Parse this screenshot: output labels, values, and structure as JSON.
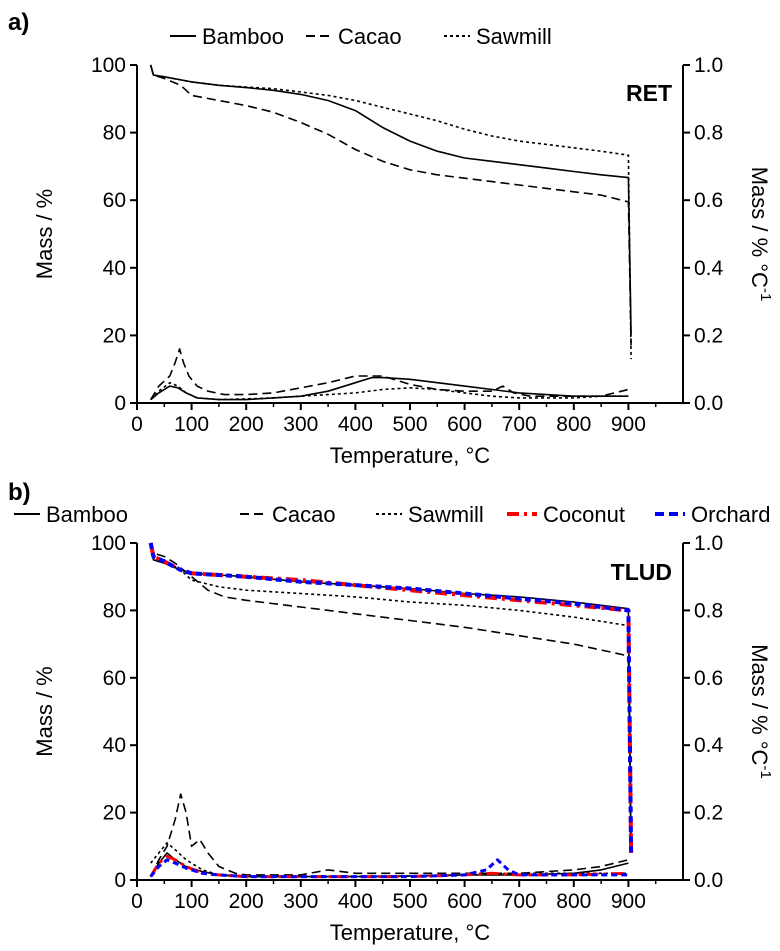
{
  "chart_data": [
    {
      "type": "line",
      "panel_label": "a)",
      "annotation": "RET",
      "xlabel": "Temperature, °C",
      "ylabel": "Mass / %",
      "y2label_main": "Mass / % °C",
      "y2label_sup": "-1",
      "xlim": [
        0,
        1000
      ],
      "ylim": [
        0,
        100
      ],
      "y2lim": [
        0,
        1.0
      ],
      "xticks": [
        "0",
        "100",
        "200",
        "300",
        "400",
        "500",
        "600",
        "700",
        "800",
        "900"
      ],
      "yticks": [
        "0",
        "20",
        "40",
        "60",
        "80",
        "100"
      ],
      "y2ticks": [
        "0.0",
        "0.2",
        "0.4",
        "0.6",
        "0.8",
        "1.0"
      ],
      "legend_position": "top",
      "series": [
        {
          "name": "Bamboo",
          "kind": "mass",
          "style": "solid",
          "color": "#000000",
          "x": [
            25,
            30,
            50,
            100,
            150,
            200,
            250,
            300,
            350,
            400,
            450,
            500,
            550,
            600,
            650,
            700,
            750,
            800,
            850,
            900,
            905
          ],
          "y": [
            100,
            97,
            96.5,
            95,
            94,
            93.3,
            92.5,
            91.3,
            89.5,
            86.5,
            81.5,
            77.5,
            74.5,
            72.5,
            71.5,
            70.5,
            69.5,
            68.5,
            67.5,
            66.7,
            20
          ]
        },
        {
          "name": "Cacao",
          "kind": "mass",
          "style": "dashed",
          "color": "#000000",
          "x": [
            25,
            30,
            50,
            80,
            100,
            150,
            200,
            250,
            300,
            350,
            400,
            450,
            500,
            550,
            600,
            650,
            700,
            750,
            800,
            850,
            900,
            905
          ],
          "y": [
            100,
            97,
            96,
            94,
            91,
            89.5,
            88,
            86,
            83,
            79.5,
            75,
            71.5,
            69,
            67.5,
            66.5,
            65.5,
            64.5,
            63.5,
            62.5,
            61.5,
            59.5,
            17
          ]
        },
        {
          "name": "Sawmill",
          "kind": "mass",
          "style": "dotted",
          "color": "#000000",
          "x": [
            25,
            30,
            50,
            100,
            150,
            200,
            250,
            300,
            350,
            400,
            450,
            500,
            550,
            600,
            650,
            700,
            750,
            800,
            850,
            900,
            905
          ],
          "y": [
            100,
            97,
            96.5,
            95,
            94,
            93.5,
            93,
            92,
            91,
            89.5,
            87.5,
            85.5,
            83.5,
            81,
            79,
            77.5,
            76.5,
            75.5,
            74.5,
            73.3,
            13
          ]
        },
        {
          "name": "Bamboo",
          "kind": "dtg",
          "style": "solid",
          "color": "#000000",
          "x": [
            25,
            40,
            60,
            75,
            90,
            110,
            150,
            200,
            250,
            300,
            350,
            400,
            430,
            450,
            500,
            550,
            600,
            650,
            700,
            750,
            800,
            850,
            900
          ],
          "y": [
            0.01,
            0.03,
            0.05,
            0.045,
            0.03,
            0.015,
            0.01,
            0.01,
            0.015,
            0.02,
            0.035,
            0.06,
            0.075,
            0.075,
            0.07,
            0.06,
            0.05,
            0.04,
            0.03,
            0.025,
            0.02,
            0.02,
            0.02
          ]
        },
        {
          "name": "Cacao",
          "kind": "dtg",
          "style": "dashed",
          "color": "#000000",
          "x": [
            25,
            40,
            60,
            70,
            78,
            85,
            95,
            110,
            130,
            160,
            200,
            250,
            300,
            350,
            400,
            450,
            500,
            550,
            600,
            650,
            670,
            690,
            720,
            800,
            850,
            900
          ],
          "y": [
            0.01,
            0.05,
            0.08,
            0.12,
            0.16,
            0.12,
            0.08,
            0.05,
            0.035,
            0.025,
            0.025,
            0.03,
            0.045,
            0.06,
            0.08,
            0.08,
            0.055,
            0.04,
            0.035,
            0.035,
            0.05,
            0.03,
            0.02,
            0.02,
            0.02,
            0.04
          ]
        },
        {
          "name": "Sawmill",
          "kind": "dtg",
          "style": "dotted",
          "color": "#000000",
          "x": [
            25,
            40,
            60,
            75,
            90,
            110,
            150,
            200,
            250,
            300,
            350,
            400,
            450,
            500,
            550,
            600,
            650,
            700,
            750,
            800,
            850,
            900
          ],
          "y": [
            0.01,
            0.035,
            0.06,
            0.05,
            0.03,
            0.015,
            0.01,
            0.012,
            0.015,
            0.02,
            0.025,
            0.03,
            0.04,
            0.045,
            0.04,
            0.03,
            0.02,
            0.015,
            0.015,
            0.015,
            0.02,
            0.02
          ]
        }
      ]
    },
    {
      "type": "line",
      "panel_label": "b)",
      "annotation": "TLUD",
      "xlabel": "Temperature, °C",
      "ylabel": "Mass / %",
      "y2label_main": "Mass / % °C",
      "y2label_sup": "-1",
      "xlim": [
        0,
        1000
      ],
      "ylim": [
        0,
        100
      ],
      "y2lim": [
        0,
        1.0
      ],
      "xticks": [
        "0",
        "100",
        "200",
        "300",
        "400",
        "500",
        "600",
        "700",
        "800",
        "900"
      ],
      "yticks": [
        "0",
        "20",
        "40",
        "60",
        "80",
        "100"
      ],
      "y2ticks": [
        "0.0",
        "0.2",
        "0.4",
        "0.6",
        "0.8",
        "1.0"
      ],
      "legend_position": "top",
      "series": [
        {
          "name": "Bamboo",
          "kind": "mass",
          "style": "solid",
          "color": "#000000",
          "x": [
            25,
            30,
            50,
            80,
            100,
            150,
            200,
            300,
            400,
            500,
            600,
            700,
            800,
            850,
            900,
            905
          ],
          "y": [
            100,
            95,
            94,
            92,
            91,
            90.5,
            90,
            88.5,
            87.5,
            86.5,
            85,
            84,
            82.5,
            81.5,
            80.5,
            8
          ]
        },
        {
          "name": "Cacao",
          "kind": "mass",
          "style": "dashed",
          "color": "#000000",
          "x": [
            25,
            30,
            50,
            70,
            100,
            130,
            160,
            200,
            300,
            400,
            500,
            600,
            700,
            800,
            900,
            905
          ],
          "y": [
            100,
            97,
            96,
            94,
            90,
            86,
            84,
            83,
            81,
            79,
            77,
            75,
            72.5,
            70,
            66.5,
            8
          ]
        },
        {
          "name": "Sawmill",
          "kind": "mass",
          "style": "dotted",
          "color": "#000000",
          "x": [
            25,
            30,
            50,
            80,
            100,
            150,
            200,
            300,
            400,
            500,
            600,
            700,
            800,
            900,
            905
          ],
          "y": [
            100,
            96,
            95,
            92,
            89,
            87,
            86,
            85,
            84,
            82.5,
            81.5,
            80,
            78,
            75.5,
            8
          ]
        },
        {
          "name": "Coconut",
          "kind": "mass",
          "style": "dashdot",
          "color": "#ff0000",
          "x": [
            25,
            30,
            50,
            80,
            100,
            150,
            200,
            300,
            400,
            500,
            600,
            700,
            800,
            900,
            905
          ],
          "y": [
            100,
            96,
            94.5,
            92,
            91,
            90.5,
            90,
            89,
            87.5,
            86,
            84.5,
            83,
            81.5,
            80,
            8
          ]
        },
        {
          "name": "Orchard",
          "kind": "mass",
          "style": "dashed",
          "color": "#0000ff",
          "x": [
            25,
            30,
            50,
            80,
            100,
            150,
            200,
            300,
            400,
            500,
            600,
            700,
            800,
            900,
            905
          ],
          "y": [
            100,
            96,
            94.5,
            92,
            91,
            90.5,
            90,
            88.5,
            87.5,
            86.5,
            85,
            83.5,
            82,
            80,
            8
          ]
        },
        {
          "name": "Bamboo",
          "kind": "dtg",
          "style": "solid",
          "color": "#000000",
          "x": [
            25,
            40,
            55,
            70,
            90,
            120,
            150,
            200,
            300,
            400,
            500,
            600,
            700,
            800,
            850,
            900
          ],
          "y": [
            0.01,
            0.05,
            0.08,
            0.06,
            0.04,
            0.025,
            0.015,
            0.01,
            0.01,
            0.01,
            0.012,
            0.015,
            0.015,
            0.02,
            0.03,
            0.05
          ]
        },
        {
          "name": "Cacao",
          "kind": "dtg",
          "style": "dashed",
          "color": "#000000",
          "x": [
            25,
            40,
            55,
            70,
            80,
            90,
            100,
            115,
            130,
            150,
            180,
            200,
            300,
            350,
            400,
            500,
            600,
            700,
            800,
            850,
            900
          ],
          "y": [
            0.01,
            0.06,
            0.1,
            0.18,
            0.255,
            0.2,
            0.1,
            0.12,
            0.08,
            0.04,
            0.02,
            0.015,
            0.015,
            0.03,
            0.02,
            0.02,
            0.02,
            0.02,
            0.03,
            0.04,
            0.06
          ]
        },
        {
          "name": "Sawmill",
          "kind": "dtg",
          "style": "dotted",
          "color": "#000000",
          "x": [
            25,
            40,
            55,
            70,
            90,
            120,
            150,
            200,
            300,
            400,
            500,
            600,
            700,
            800,
            900
          ],
          "y": [
            0.05,
            0.08,
            0.11,
            0.09,
            0.06,
            0.03,
            0.015,
            0.01,
            0.01,
            0.01,
            0.012,
            0.015,
            0.02,
            0.02,
            0.02
          ]
        },
        {
          "name": "Coconut",
          "kind": "dtg",
          "style": "dashdot",
          "color": "#ff0000",
          "x": [
            25,
            40,
            55,
            70,
            90,
            120,
            150,
            200,
            300,
            400,
            500,
            600,
            650,
            700,
            800,
            900
          ],
          "y": [
            0.01,
            0.05,
            0.07,
            0.06,
            0.04,
            0.02,
            0.015,
            0.01,
            0.01,
            0.01,
            0.01,
            0.015,
            0.02,
            0.015,
            0.015,
            0.02
          ]
        },
        {
          "name": "Orchard",
          "kind": "dtg",
          "style": "dashed",
          "color": "#0000ff",
          "x": [
            25,
            40,
            55,
            70,
            90,
            120,
            150,
            200,
            300,
            400,
            500,
            600,
            640,
            660,
            680,
            700,
            800,
            900
          ],
          "y": [
            0.01,
            0.04,
            0.06,
            0.05,
            0.035,
            0.02,
            0.015,
            0.01,
            0.01,
            0.01,
            0.01,
            0.015,
            0.03,
            0.06,
            0.03,
            0.015,
            0.015,
            0.015
          ]
        }
      ]
    }
  ]
}
